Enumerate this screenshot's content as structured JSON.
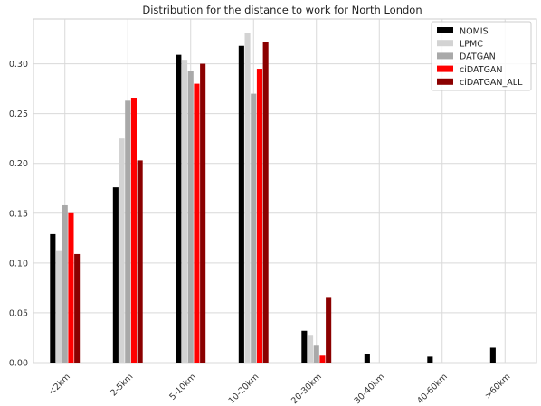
{
  "chart_data": {
    "type": "bar",
    "title": "Distribution for the distance to work for North London",
    "xlabel": "",
    "ylabel": "",
    "categories": [
      "<2km",
      "2-5km",
      "5-10km",
      "10-20km",
      "20-30km",
      "30-40km",
      "40-60km",
      ">60km"
    ],
    "ylim": [
      0,
      0.345
    ],
    "yticks": [
      "0.00",
      "0.05",
      "0.10",
      "0.15",
      "0.20",
      "0.25",
      "0.30"
    ],
    "grid": true,
    "legend_position": "top-right",
    "series": [
      {
        "name": "NOMIS",
        "color": "#000000",
        "values": [
          0.129,
          0.176,
          0.309,
          0.318,
          0.032,
          0.009,
          0.006,
          0.015
        ]
      },
      {
        "name": "LPMC",
        "color": "#d3d3d3",
        "values": [
          0.112,
          0.225,
          0.304,
          0.331,
          0.027,
          0.0,
          0.0,
          0.0
        ]
      },
      {
        "name": "DATGAN",
        "color": "#a9a9a9",
        "values": [
          0.158,
          0.263,
          0.293,
          0.27,
          0.017,
          0.0,
          0.0,
          0.0
        ]
      },
      {
        "name": "ciDATGAN",
        "color": "#ff0000",
        "values": [
          0.15,
          0.266,
          0.28,
          0.295,
          0.007,
          0.0,
          0.0,
          0.0
        ]
      },
      {
        "name": "ciDATGAN_ALL",
        "color": "#8b0000",
        "values": [
          0.109,
          0.203,
          0.3,
          0.322,
          0.065,
          0.0,
          0.0,
          0.0
        ]
      }
    ]
  }
}
